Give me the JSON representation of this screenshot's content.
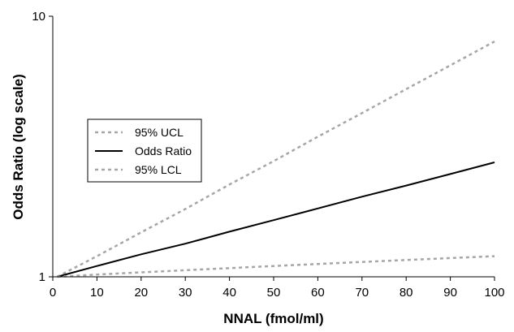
{
  "chart_data": {
    "type": "line",
    "title": "",
    "xlabel": "NNAL (fmol/ml)",
    "ylabel": "Odds Ratio (log scale)",
    "xlim": [
      0,
      100
    ],
    "ylim": [
      1,
      10
    ],
    "y_scale": "log",
    "grid": false,
    "legend_position": "middle-left",
    "x_ticks": [
      0,
      10,
      20,
      30,
      40,
      50,
      60,
      70,
      80,
      90,
      100
    ],
    "y_ticks": [
      1,
      10
    ],
    "x": [
      1,
      10,
      20,
      30,
      40,
      50,
      60,
      70,
      80,
      90,
      100
    ],
    "series": [
      {
        "name": "95% UCL",
        "style": "dashed",
        "color": "#a6a6a6",
        "values": [
          1.0,
          1.2,
          1.48,
          1.82,
          2.26,
          2.78,
          3.45,
          4.25,
          5.25,
          6.48,
          8.0
        ]
      },
      {
        "name": "Odds Ratio",
        "style": "solid",
        "color": "#000000",
        "values": [
          1.0,
          1.1,
          1.22,
          1.34,
          1.49,
          1.65,
          1.83,
          2.03,
          2.24,
          2.48,
          2.75
        ]
      },
      {
        "name": "95% LCL",
        "style": "dashed",
        "color": "#a6a6a6",
        "values": [
          1.0,
          1.02,
          1.04,
          1.06,
          1.08,
          1.1,
          1.12,
          1.14,
          1.16,
          1.18,
          1.2
        ]
      }
    ]
  }
}
